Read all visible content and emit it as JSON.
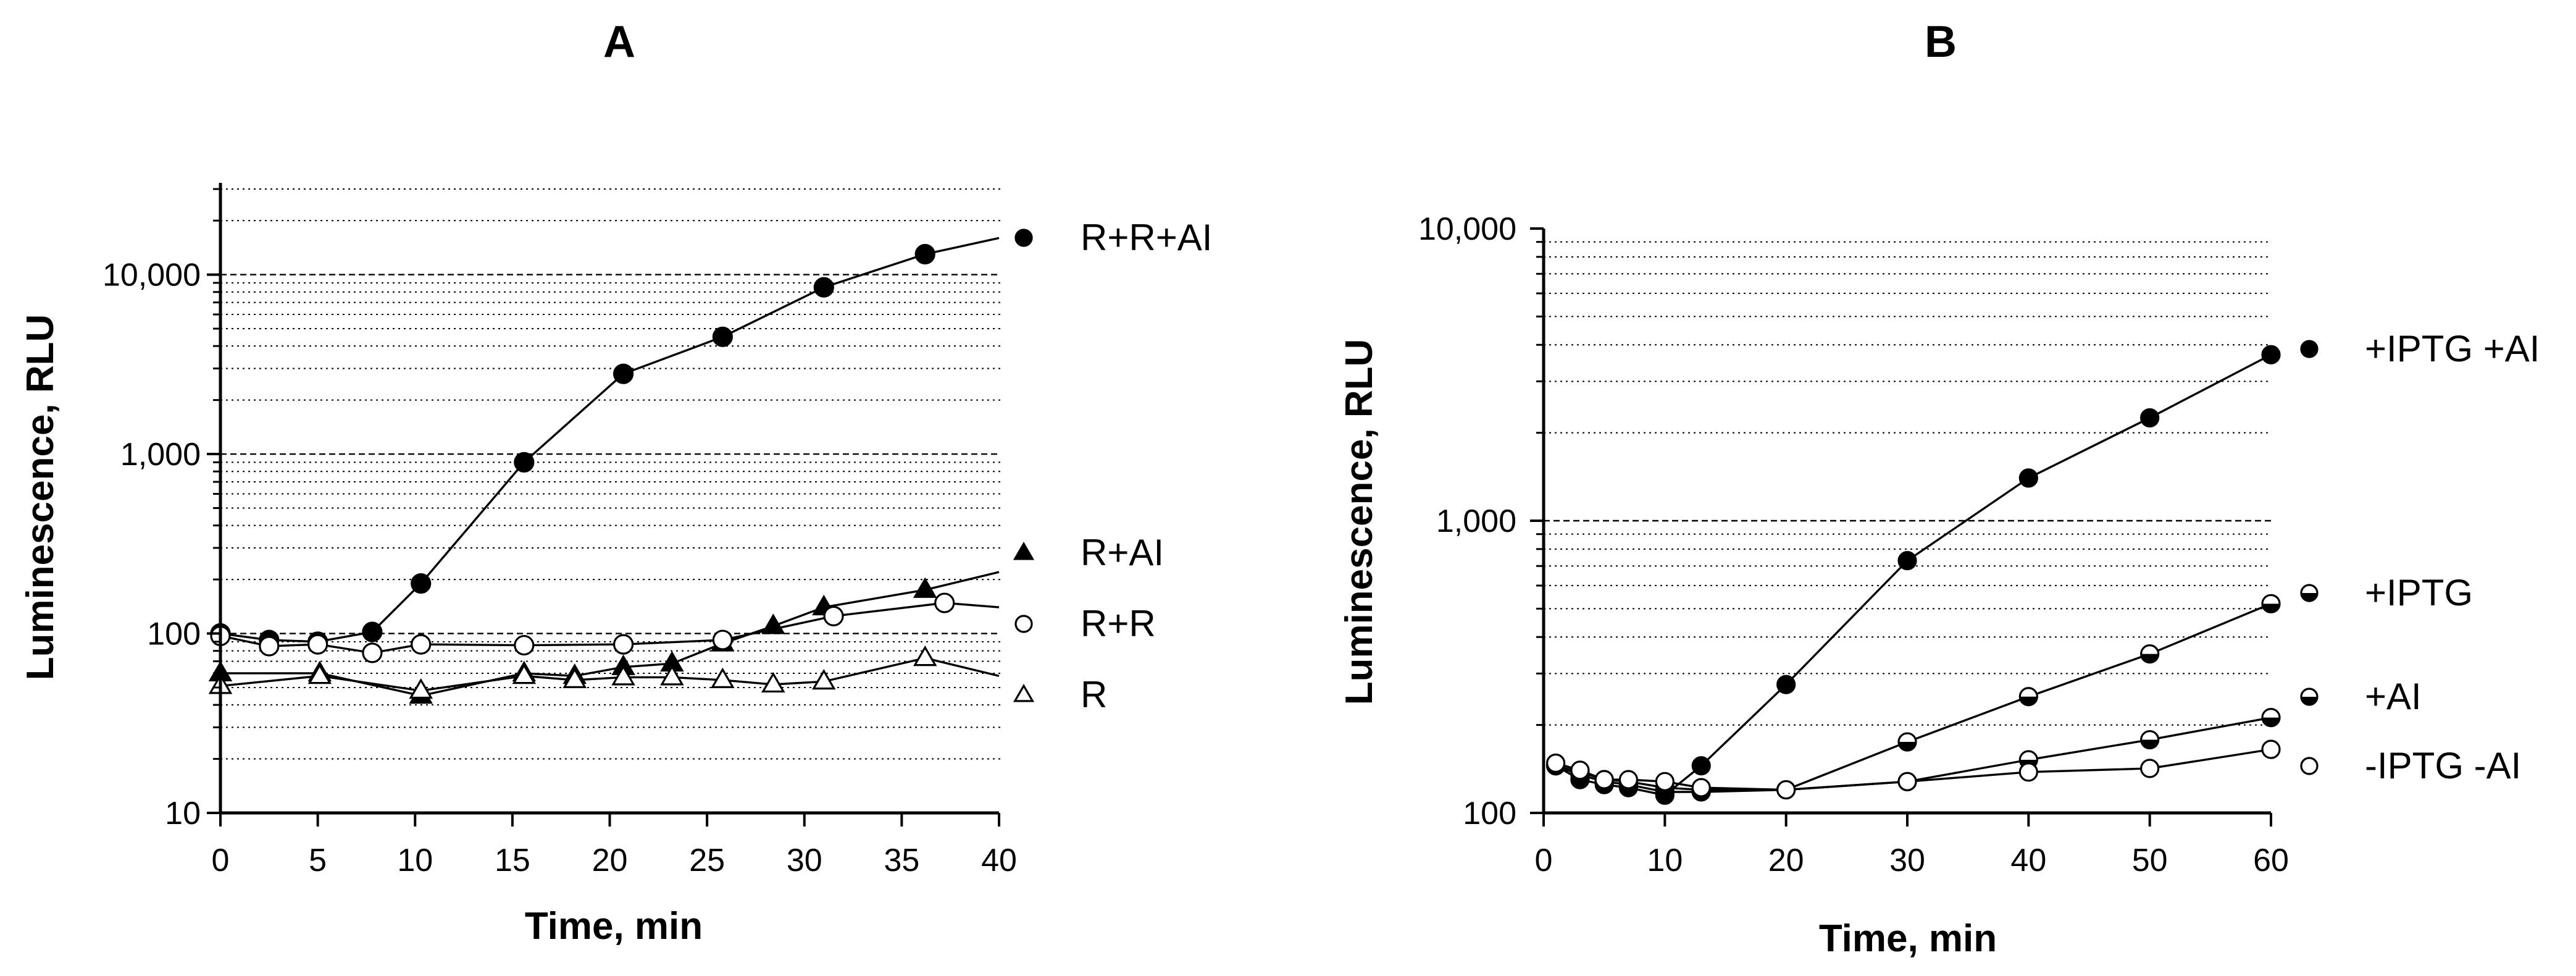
{
  "chart_data": [
    {
      "panel": "A",
      "type": "line",
      "title": "A",
      "xlabel": "Time, min",
      "ylabel": "Luminescence, RLU",
      "yscale": "log",
      "xlim": [
        0,
        40
      ],
      "ylim": [
        10,
        30000
      ],
      "xticks": [
        "0",
        "5",
        "10",
        "15",
        "20",
        "25",
        "30",
        "35",
        "40"
      ],
      "yticks": [
        "10",
        "100",
        "1,000",
        "10,000"
      ],
      "grid": "horizontal dotted minor, dashed major",
      "legend_position": "right",
      "series": [
        {
          "name": "R+R+AI",
          "marker": "filled-circle",
          "x": [
            0,
            2.5,
            5,
            7.8,
            10.3,
            15.6,
            20.7,
            25.8,
            31,
            36.2,
            40
          ],
          "y": [
            100,
            92,
            90,
            102,
            190,
            900,
            2800,
            4500,
            8500,
            13000,
            16000
          ],
          "markers_shown_at": [
            0,
            2.5,
            5,
            7.8,
            10.3,
            15.6,
            20.7,
            25.8,
            31,
            36.2
          ]
        },
        {
          "name": "R+AI",
          "marker": "filled-triangle",
          "x": [
            0,
            5.1,
            10.3,
            15.6,
            18.2,
            20.7,
            23.2,
            25.8,
            28.4,
            31,
            36.2,
            40
          ],
          "y": [
            60,
            60,
            45,
            60,
            58,
            65,
            68,
            88,
            110,
            140,
            175,
            220
          ],
          "markers_shown_at": [
            0,
            5.1,
            10.3,
            15.6,
            18.2,
            20.7,
            23.2,
            25.8,
            28.4,
            31,
            36.2
          ]
        },
        {
          "name": "R+R",
          "marker": "open-circle",
          "x": [
            0,
            2.5,
            5,
            7.8,
            10.3,
            15.6,
            20.7,
            25.8,
            31.5,
            37.2,
            40
          ],
          "y": [
            97,
            85,
            87,
            78,
            87,
            86,
            87,
            92,
            125,
            148,
            140
          ],
          "markers_shown_at": [
            0,
            2.5,
            5,
            7.8,
            10.3,
            15.6,
            20.7,
            25.8,
            31.5,
            37.2
          ]
        },
        {
          "name": "R",
          "marker": "open-triangle",
          "x": [
            0,
            5.1,
            10.3,
            15.6,
            18.2,
            20.7,
            23.2,
            25.8,
            28.4,
            31,
            36.2,
            40
          ],
          "y": [
            51,
            58,
            48,
            58,
            55,
            57,
            57,
            55,
            52,
            54,
            73,
            58
          ],
          "markers_shown_at": [
            0,
            5.1,
            10.3,
            15.6,
            18.2,
            20.7,
            23.2,
            25.8,
            28.4,
            31,
            36.2
          ]
        }
      ]
    },
    {
      "panel": "B",
      "type": "line",
      "title": "B",
      "xlabel": "Time, min",
      "ylabel": "Luminescence, RLU",
      "yscale": "log",
      "xlim": [
        0,
        60
      ],
      "ylim": [
        100,
        10000
      ],
      "xticks": [
        "0",
        "10",
        "20",
        "30",
        "40",
        "50",
        "60"
      ],
      "yticks": [
        "100",
        "1,000",
        "10,000"
      ],
      "grid": "horizontal dotted minor, dashed major",
      "legend_position": "right",
      "series": [
        {
          "name": "+IPTG +AI",
          "marker": "filled-circle",
          "x": [
            1,
            3,
            5,
            7,
            10,
            13,
            20,
            30,
            40,
            50,
            60
          ],
          "y": [
            145,
            130,
            125,
            122,
            115,
            145,
            275,
            730,
            1400,
            2250,
            3700
          ]
        },
        {
          "name": "+IPTG",
          "marker": "half-filled-circle",
          "x": [
            1,
            3,
            5,
            7,
            10,
            13,
            20,
            30,
            40,
            50,
            60
          ],
          "y": [
            145,
            135,
            128,
            125,
            118,
            118,
            120,
            175,
            250,
            350,
            520
          ]
        },
        {
          "name": "+AI",
          "marker": "half-filled-circle",
          "x": [
            1,
            3,
            5,
            7,
            10,
            13,
            20,
            30,
            40,
            50,
            60
          ],
          "y": [
            145,
            138,
            130,
            128,
            122,
            120,
            120,
            128,
            152,
            178,
            212
          ]
        },
        {
          "name": "-IPTG -AI",
          "marker": "open-circle",
          "x": [
            1,
            3,
            5,
            7,
            10,
            13,
            20,
            30,
            40,
            50,
            60
          ],
          "y": [
            148,
            140,
            130,
            130,
            128,
            122,
            120,
            128,
            138,
            142,
            165
          ]
        }
      ]
    }
  ]
}
